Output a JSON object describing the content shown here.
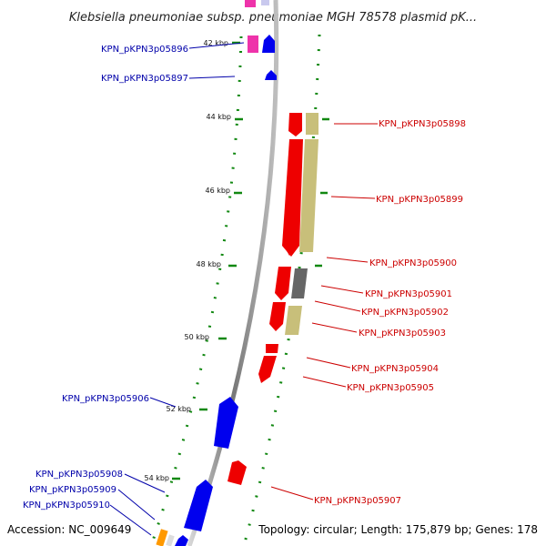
{
  "title": "Klebsiella pneumoniae subsp. pneumoniae MGH 78578 plasmid pK...",
  "footer": {
    "accession": "Accession: NC_009649",
    "topology": "Topology: circular; Length: 175,879 bp; Genes: 178"
  },
  "ticks": [
    "42 kbp",
    "44 kbp",
    "46 kbp",
    "48 kbp",
    "50 kbp",
    "52 kbp",
    "54 kbp"
  ],
  "genes": [
    "KPN_pKPN3p05896",
    "KPN_pKPN3p05897",
    "KPN_pKPN3p05898",
    "KPN_pKPN3p05899",
    "KPN_pKPN3p05900",
    "KPN_pKPN3p05901",
    "KPN_pKPN3p05902",
    "KPN_pKPN3p05903",
    "KPN_pKPN3p05904",
    "KPN_pKPN3p05905",
    "KPN_pKPN3p05906",
    "KPN_pKPN3p05907",
    "KPN_pKPN3p05908",
    "KPN_pKPN3p05909",
    "KPN_pKPN3p05910"
  ],
  "colors": {
    "forward_gene": "#0000ee",
    "reverse_gene": "#ee0000",
    "forward_label": "#0000aa",
    "reverse_label": "#cc0000",
    "khaki_feature": "#c8bf7a",
    "gray_feature": "#666666",
    "magenta_feature": "#ee33aa",
    "orange_feature": "#ff9900",
    "tick_green": "#118811",
    "backbone": "#8a8a8a"
  }
}
